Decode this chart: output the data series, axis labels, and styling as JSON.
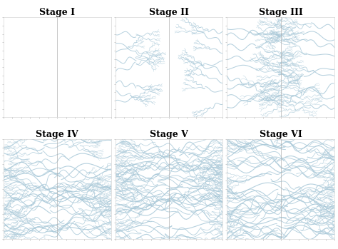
{
  "titles": [
    "Stage I",
    "Stage II",
    "Stage III",
    "Stage IV",
    "Stage V",
    "Stage VI"
  ],
  "nrows": 2,
  "ncols": 3,
  "bg_color": "#ffffff",
  "line_color": "#a8c8d8",
  "center_line_color": "#aaaaaa",
  "spine_color": "#cccccc",
  "title_fontsize": 9,
  "title_fontweight": "bold",
  "figsize": [
    4.74,
    3.49
  ],
  "dpi": 100,
  "xlim": [
    0,
    100
  ],
  "ylim": [
    0,
    100
  ]
}
